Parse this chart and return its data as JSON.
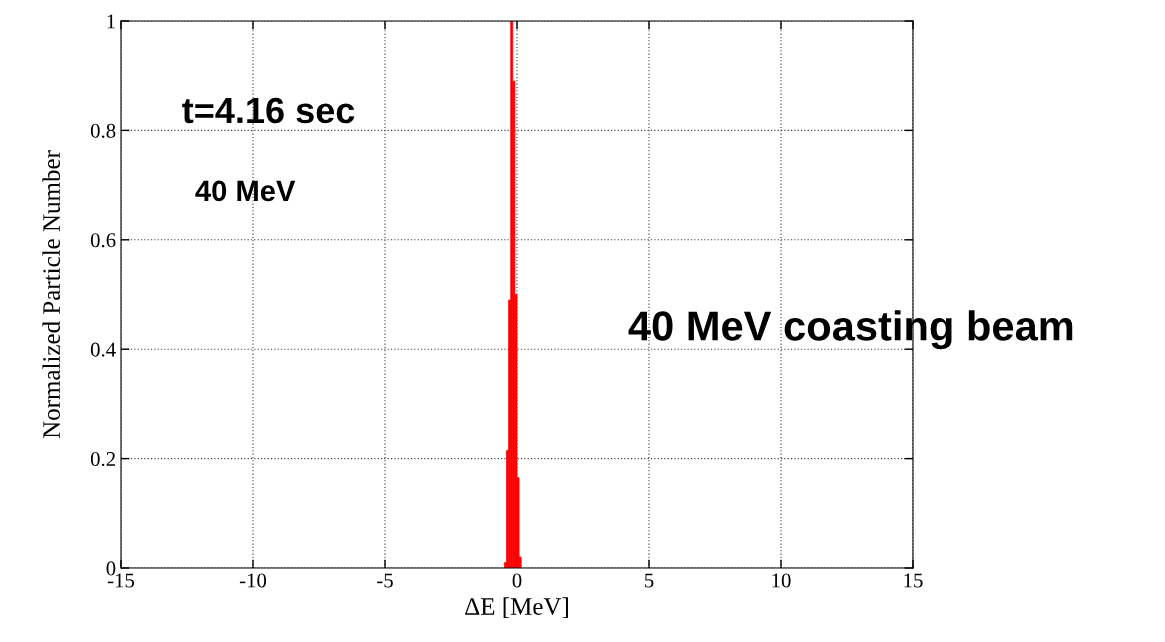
{
  "chart_data": {
    "type": "histogram",
    "xlabel": "ΔE [MeV]",
    "ylabel": "Normalized Particle Number",
    "bins": [
      -0.48,
      -0.4,
      -0.32,
      -0.24,
      -0.16,
      -0.08,
      0,
      0.08,
      0.16
    ],
    "values": [
      0.01,
      0.215,
      0.49,
      1.0,
      0.89,
      0.5,
      0.165,
      0.02
    ],
    "color": "#ff0000",
    "xlim": [
      -15,
      15
    ],
    "xticks": [
      -15,
      -10,
      -5,
      0,
      5,
      10,
      15
    ],
    "ylim": [
      0,
      1
    ],
    "yticks": [
      0,
      0.2,
      0.4,
      0.6,
      0.8,
      1
    ],
    "grid": true,
    "annotations": [
      "t=4.16 sec",
      "40 MeV",
      "40 MeV coasting beam"
    ]
  }
}
